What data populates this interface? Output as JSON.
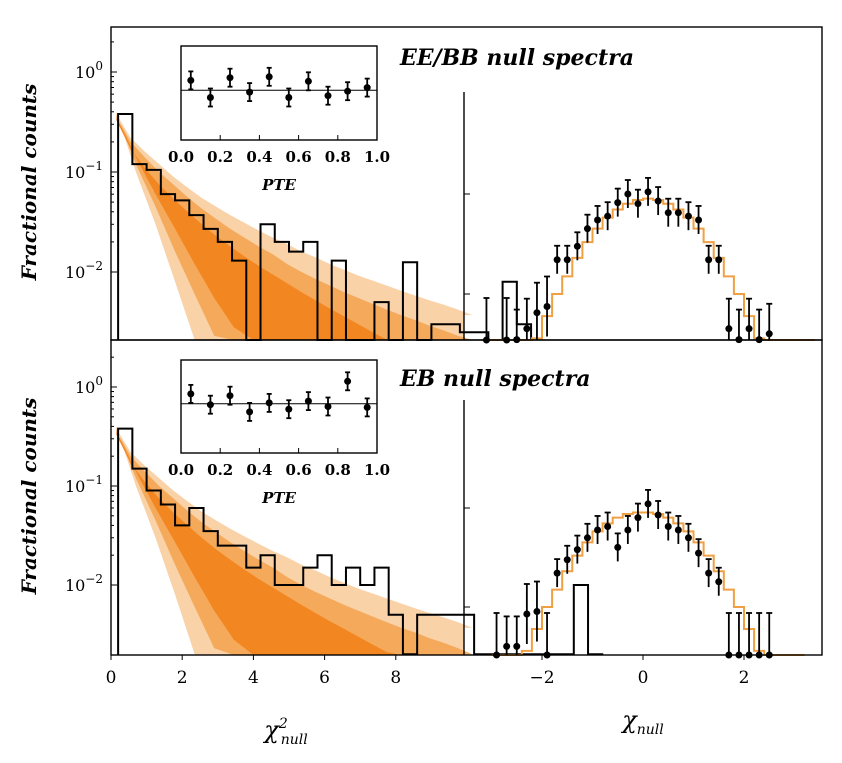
{
  "colors": {
    "band_inner": "#f28722",
    "band_mid": "#f5a95a",
    "band_outer": "#f9d2a8",
    "model_line": "#f0a044",
    "data": "#000000"
  },
  "chart_data": [
    {
      "id": "top",
      "type": "step",
      "title": "EE/BB null spectra",
      "ylabel": "Fractional counts",
      "y_ticks": [
        "10^0",
        "10^-1",
        "10^-2"
      ],
      "chi2_hist": {
        "bin_width": 0.4,
        "start": 0.2,
        "values": [
          0.38,
          0.12,
          0.105,
          0.06,
          0.052,
          0.037,
          0.027,
          0.02,
          0.013,
          0.002,
          0.03,
          0.02,
          0.016,
          0.02,
          0.002,
          0.013,
          0.002,
          0.002,
          0.005,
          0.002,
          0.0125,
          0.002,
          0.003,
          0.003,
          0.0025,
          0.0025,
          0.002,
          0.008,
          0.003
        ]
      },
      "inset": {
        "xlabel": "PTE",
        "x_ticks": [
          "0.0",
          "0.2",
          "0.4",
          "0.6",
          "0.8",
          "1.0"
        ],
        "points": [
          {
            "x": 0.05,
            "y": 0.7,
            "err": 0.22
          },
          {
            "x": 0.15,
            "y": -0.25,
            "err": 0.22
          },
          {
            "x": 0.25,
            "y": 0.85,
            "err": 0.22
          },
          {
            "x": 0.35,
            "y": 0.05,
            "err": 0.22
          },
          {
            "x": 0.45,
            "y": 0.9,
            "err": 0.22
          },
          {
            "x": 0.55,
            "y": -0.25,
            "err": 0.22
          },
          {
            "x": 0.65,
            "y": 0.65,
            "err": 0.22
          },
          {
            "x": 0.75,
            "y": -0.15,
            "err": 0.22
          },
          {
            "x": 0.85,
            "y": 0.1,
            "err": 0.22
          },
          {
            "x": 0.95,
            "y": 0.3,
            "err": 0.22
          }
        ]
      },
      "right": {
        "model_step": [
          {
            "x": -3.2,
            "y": 0.0005
          },
          {
            "x": -2.6,
            "y": 0.0012
          },
          {
            "x": -2.4,
            "y": 0.0022
          },
          {
            "x": -2.2,
            "y": 0.0036
          },
          {
            "x": -2.0,
            "y": 0.006
          },
          {
            "x": -1.8,
            "y": 0.01
          },
          {
            "x": -1.6,
            "y": 0.015
          },
          {
            "x": -1.4,
            "y": 0.023
          },
          {
            "x": -1.2,
            "y": 0.033
          },
          {
            "x": -1.0,
            "y": 0.045
          },
          {
            "x": -0.8,
            "y": 0.058
          },
          {
            "x": -0.6,
            "y": 0.07
          },
          {
            "x": -0.4,
            "y": 0.08
          },
          {
            "x": -0.2,
            "y": 0.087
          },
          {
            "x": 0.0,
            "y": 0.09
          },
          {
            "x": 0.2,
            "y": 0.087
          },
          {
            "x": 0.4,
            "y": 0.08
          },
          {
            "x": 0.6,
            "y": 0.07
          },
          {
            "x": 0.8,
            "y": 0.058
          },
          {
            "x": 1.0,
            "y": 0.045
          },
          {
            "x": 1.2,
            "y": 0.033
          },
          {
            "x": 1.4,
            "y": 0.023
          },
          {
            "x": 1.6,
            "y": 0.015
          },
          {
            "x": 1.8,
            "y": 0.01
          },
          {
            "x": 2.0,
            "y": 0.006
          },
          {
            "x": 2.2,
            "y": 0.0036
          },
          {
            "x": 2.4,
            "y": 0.0022
          },
          {
            "x": 2.6,
            "y": 0.0012
          },
          {
            "x": 2.8,
            "y": 0.0007
          },
          {
            "x": 3.0,
            "y": 0.0004
          },
          {
            "x": 3.2,
            "y": 0.0004
          }
        ],
        "points": [
          {
            "x": -3.1,
            "y": 0.0016
          },
          {
            "x": -2.7,
            "y": 0.0016
          },
          {
            "x": -2.5,
            "y": 0.0035
          },
          {
            "x": -2.3,
            "y": 0.0045
          },
          {
            "x": -2.1,
            "y": 0.0065
          },
          {
            "x": -1.9,
            "y": 0.0075
          },
          {
            "x": -1.7,
            "y": 0.022
          },
          {
            "x": -1.5,
            "y": 0.022
          },
          {
            "x": -1.3,
            "y": 0.03
          },
          {
            "x": -1.1,
            "y": 0.045
          },
          {
            "x": -0.9,
            "y": 0.055
          },
          {
            "x": -0.7,
            "y": 0.06
          },
          {
            "x": -0.5,
            "y": 0.082
          },
          {
            "x": -0.3,
            "y": 0.1
          },
          {
            "x": -0.1,
            "y": 0.08
          },
          {
            "x": 0.1,
            "y": 0.105
          },
          {
            "x": 0.3,
            "y": 0.085
          },
          {
            "x": 0.5,
            "y": 0.065
          },
          {
            "x": 0.7,
            "y": 0.065
          },
          {
            "x": 0.9,
            "y": 0.06
          },
          {
            "x": 1.1,
            "y": 0.055
          },
          {
            "x": 1.3,
            "y": 0.022
          },
          {
            "x": 1.5,
            "y": 0.022
          },
          {
            "x": 1.7,
            "y": 0.0045
          },
          {
            "x": 1.9,
            "y": 0.0035
          },
          {
            "x": 2.1,
            "y": 0.0045
          },
          {
            "x": 2.3,
            "y": 0.0035
          },
          {
            "x": 2.5,
            "y": 0.004
          }
        ]
      }
    },
    {
      "id": "bottom",
      "type": "step",
      "title": "EB null spectra",
      "ylabel": "Fractional counts",
      "y_ticks": [
        "10^0",
        "10^-1",
        "10^-2"
      ],
      "xlabel_left": "χ²null",
      "xlabel_right": "χnull",
      "x_ticks_left": [
        "0",
        "2",
        "4",
        "6",
        "8"
      ],
      "x_ticks_right": [
        "−2",
        "0",
        "2"
      ],
      "chi2_hist": {
        "bin_width": 0.4,
        "start": 0.2,
        "values": [
          0.38,
          0.15,
          0.09,
          0.065,
          0.04,
          0.06,
          0.035,
          0.025,
          0.025,
          0.015,
          0.02,
          0.01,
          0.01,
          0.015,
          0.02,
          0.01,
          0.015,
          0.01,
          0.015,
          0.005,
          0.002,
          0.005,
          0.005,
          0.005,
          0.005,
          0.002,
          0.002,
          0.002,
          0.002,
          0.002,
          0.002,
          0.002,
          0.01,
          0.002
        ]
      },
      "inset": {
        "xlabel": "PTE",
        "x_ticks": [
          "0.0",
          "0.2",
          "0.4",
          "0.6",
          "0.8",
          "1.0"
        ],
        "points": [
          {
            "x": 0.05,
            "y": 0.7,
            "err": 0.22
          },
          {
            "x": 0.15,
            "y": 0.1,
            "err": 0.22
          },
          {
            "x": 0.25,
            "y": 0.6,
            "err": 0.22
          },
          {
            "x": 0.35,
            "y": -0.3,
            "err": 0.22
          },
          {
            "x": 0.45,
            "y": 0.2,
            "err": 0.22
          },
          {
            "x": 0.55,
            "y": -0.15,
            "err": 0.22
          },
          {
            "x": 0.65,
            "y": 0.3,
            "err": 0.22
          },
          {
            "x": 0.75,
            "y": 0.0,
            "err": 0.22
          },
          {
            "x": 0.85,
            "y": 1.4,
            "err": 0.22
          },
          {
            "x": 0.95,
            "y": -0.05,
            "err": 0.22
          }
        ]
      },
      "right": {
        "model_step": [
          {
            "x": -3.0,
            "y": 0.0006
          },
          {
            "x": -2.8,
            "y": 0.0012
          },
          {
            "x": -2.6,
            "y": 0.0022
          },
          {
            "x": -2.4,
            "y": 0.0036
          },
          {
            "x": -2.2,
            "y": 0.006
          },
          {
            "x": -2.0,
            "y": 0.01
          },
          {
            "x": -1.8,
            "y": 0.015
          },
          {
            "x": -1.6,
            "y": 0.023
          },
          {
            "x": -1.4,
            "y": 0.033
          },
          {
            "x": -1.2,
            "y": 0.045
          },
          {
            "x": -1.0,
            "y": 0.058
          },
          {
            "x": -0.8,
            "y": 0.07
          },
          {
            "x": -0.6,
            "y": 0.08
          },
          {
            "x": -0.4,
            "y": 0.087
          },
          {
            "x": -0.2,
            "y": 0.09
          },
          {
            "x": 0.0,
            "y": 0.09
          },
          {
            "x": 0.2,
            "y": 0.087
          },
          {
            "x": 0.4,
            "y": 0.08
          },
          {
            "x": 0.6,
            "y": 0.07
          },
          {
            "x": 0.8,
            "y": 0.058
          },
          {
            "x": 1.0,
            "y": 0.045
          },
          {
            "x": 1.2,
            "y": 0.033
          },
          {
            "x": 1.4,
            "y": 0.023
          },
          {
            "x": 1.6,
            "y": 0.015
          },
          {
            "x": 1.8,
            "y": 0.01
          },
          {
            "x": 2.0,
            "y": 0.006
          },
          {
            "x": 2.2,
            "y": 0.0036
          },
          {
            "x": 2.4,
            "y": 0.0022
          },
          {
            "x": 2.6,
            "y": 0.0012
          },
          {
            "x": 2.8,
            "y": 0.0006
          },
          {
            "x": 3.0,
            "y": 0.0006
          }
        ],
        "points": [
          {
            "x": -2.9,
            "y": 0.002
          },
          {
            "x": -2.7,
            "y": 0.004
          },
          {
            "x": -2.5,
            "y": 0.004
          },
          {
            "x": -2.3,
            "y": 0.0085
          },
          {
            "x": -2.1,
            "y": 0.009
          },
          {
            "x": -1.9,
            "y": 0.002
          },
          {
            "x": -1.7,
            "y": 0.022
          },
          {
            "x": -1.5,
            "y": 0.03
          },
          {
            "x": -1.3,
            "y": 0.038
          },
          {
            "x": -1.1,
            "y": 0.05
          },
          {
            "x": -0.9,
            "y": 0.06
          },
          {
            "x": -0.7,
            "y": 0.065
          },
          {
            "x": -0.5,
            "y": 0.04
          },
          {
            "x": -0.3,
            "y": 0.06
          },
          {
            "x": -0.1,
            "y": 0.08
          },
          {
            "x": 0.1,
            "y": 0.11
          },
          {
            "x": 0.3,
            "y": 0.085
          },
          {
            "x": 0.5,
            "y": 0.065
          },
          {
            "x": 0.7,
            "y": 0.06
          },
          {
            "x": 0.9,
            "y": 0.05
          },
          {
            "x": 1.1,
            "y": 0.035
          },
          {
            "x": 1.3,
            "y": 0.022
          },
          {
            "x": 1.5,
            "y": 0.018
          },
          {
            "x": 1.7,
            "y": 0.002
          },
          {
            "x": 1.9,
            "y": 0.002
          },
          {
            "x": 2.1,
            "y": 0.002
          },
          {
            "x": 2.3,
            "y": 0.002
          },
          {
            "x": 2.5,
            "y": 0.002
          }
        ]
      }
    }
  ]
}
